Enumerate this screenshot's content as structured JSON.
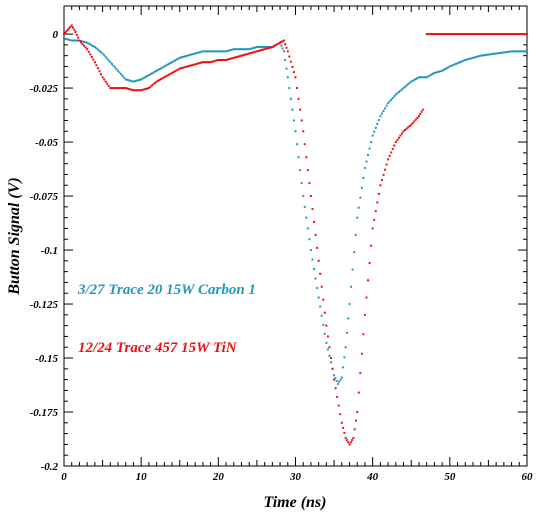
{
  "chart_data": {
    "type": "scatter",
    "title": "",
    "xlabel": "Time (ns)",
    "ylabel": "Button Signal (V)",
    "xlim": [
      0,
      60
    ],
    "ylim": [
      -0.2,
      0.013
    ],
    "xticks": [
      0,
      10,
      20,
      30,
      40,
      50,
      60
    ],
    "xtick_labels": [
      "0",
      "10",
      "20",
      "30",
      "40",
      "50",
      "60"
    ],
    "yticks": [
      0,
      -0.025,
      -0.05,
      -0.075,
      -0.1,
      -0.125,
      -0.15,
      -0.175,
      -0.2
    ],
    "ytick_labels": [
      "0",
      "-0.025",
      "-0.05",
      "-0.075",
      "-0.1",
      "-0.125",
      "-0.15",
      "-0.175",
      "-0.2"
    ],
    "grid": false,
    "annotations": [
      {
        "text": "3/27 Trace 20 15W Carbon 1",
        "color": "#2299bb",
        "x": 2,
        "y": -0.118
      },
      {
        "text": "12/24 Trace 457 15W TiN",
        "color": "#ee1111",
        "x": 2,
        "y": -0.145
      }
    ],
    "series": [
      {
        "color": "#2299bb",
        "x": [
          0,
          1,
          2,
          3,
          4,
          5,
          6,
          7,
          8,
          9,
          10,
          11,
          12,
          13,
          14,
          15,
          16,
          17,
          18,
          19,
          20,
          21,
          22,
          23,
          24,
          25,
          26,
          27,
          28,
          28.5,
          29,
          30,
          31,
          32,
          33,
          34,
          35,
          35.5,
          36,
          36.5,
          37,
          38,
          39,
          40,
          41,
          42,
          43,
          44,
          45,
          46,
          47,
          48,
          49,
          50,
          52,
          54,
          56,
          58,
          60
        ],
        "y": [
          -0.002,
          -0.003,
          -0.003,
          -0.004,
          -0.006,
          -0.009,
          -0.013,
          -0.017,
          -0.021,
          -0.022,
          -0.021,
          -0.019,
          -0.017,
          -0.015,
          -0.013,
          -0.011,
          -0.01,
          -0.009,
          -0.008,
          -0.008,
          -0.008,
          -0.008,
          -0.007,
          -0.007,
          -0.007,
          -0.006,
          -0.006,
          -0.006,
          -0.004,
          -0.008,
          -0.02,
          -0.045,
          -0.075,
          -0.1,
          -0.122,
          -0.143,
          -0.158,
          -0.162,
          -0.159,
          -0.145,
          -0.125,
          -0.085,
          -0.062,
          -0.047,
          -0.038,
          -0.032,
          -0.028,
          -0.025,
          -0.022,
          -0.02,
          -0.02,
          -0.018,
          -0.017,
          -0.015,
          -0.012,
          -0.01,
          -0.009,
          -0.008,
          -0.008
        ]
      },
      {
        "color": "#ee1111",
        "x": [
          0,
          0.5,
          1,
          1.5,
          2,
          3,
          4,
          5,
          6,
          7,
          8,
          9,
          10,
          11,
          12,
          13,
          14,
          15,
          16,
          17,
          18,
          19,
          20,
          21,
          22,
          23,
          24,
          25,
          26,
          27,
          28,
          28.5,
          29,
          30,
          31,
          32,
          33,
          34,
          35,
          36,
          36.5,
          37,
          37.5,
          38,
          39,
          40,
          41,
          42,
          43,
          44,
          45,
          46,
          46.5
        ],
        "y": [
          0.0,
          0.002,
          0.004,
          0.001,
          -0.003,
          -0.007,
          -0.013,
          -0.02,
          -0.025,
          -0.025,
          -0.025,
          -0.026,
          -0.026,
          -0.025,
          -0.022,
          -0.02,
          -0.018,
          -0.016,
          -0.015,
          -0.014,
          -0.013,
          -0.013,
          -0.012,
          -0.012,
          -0.011,
          -0.01,
          -0.009,
          -0.008,
          -0.007,
          -0.006,
          -0.004,
          -0.003,
          -0.008,
          -0.02,
          -0.045,
          -0.075,
          -0.105,
          -0.135,
          -0.16,
          -0.18,
          -0.187,
          -0.19,
          -0.187,
          -0.175,
          -0.13,
          -0.09,
          -0.07,
          -0.058,
          -0.05,
          -0.045,
          -0.042,
          -0.038,
          -0.035
        ]
      },
      {
        "color": "#ee1111",
        "x": [
          47,
          48,
          50,
          52,
          54,
          56,
          58,
          60
        ],
        "y": [
          0,
          0,
          0,
          0,
          0,
          0,
          0,
          0
        ]
      }
    ]
  }
}
